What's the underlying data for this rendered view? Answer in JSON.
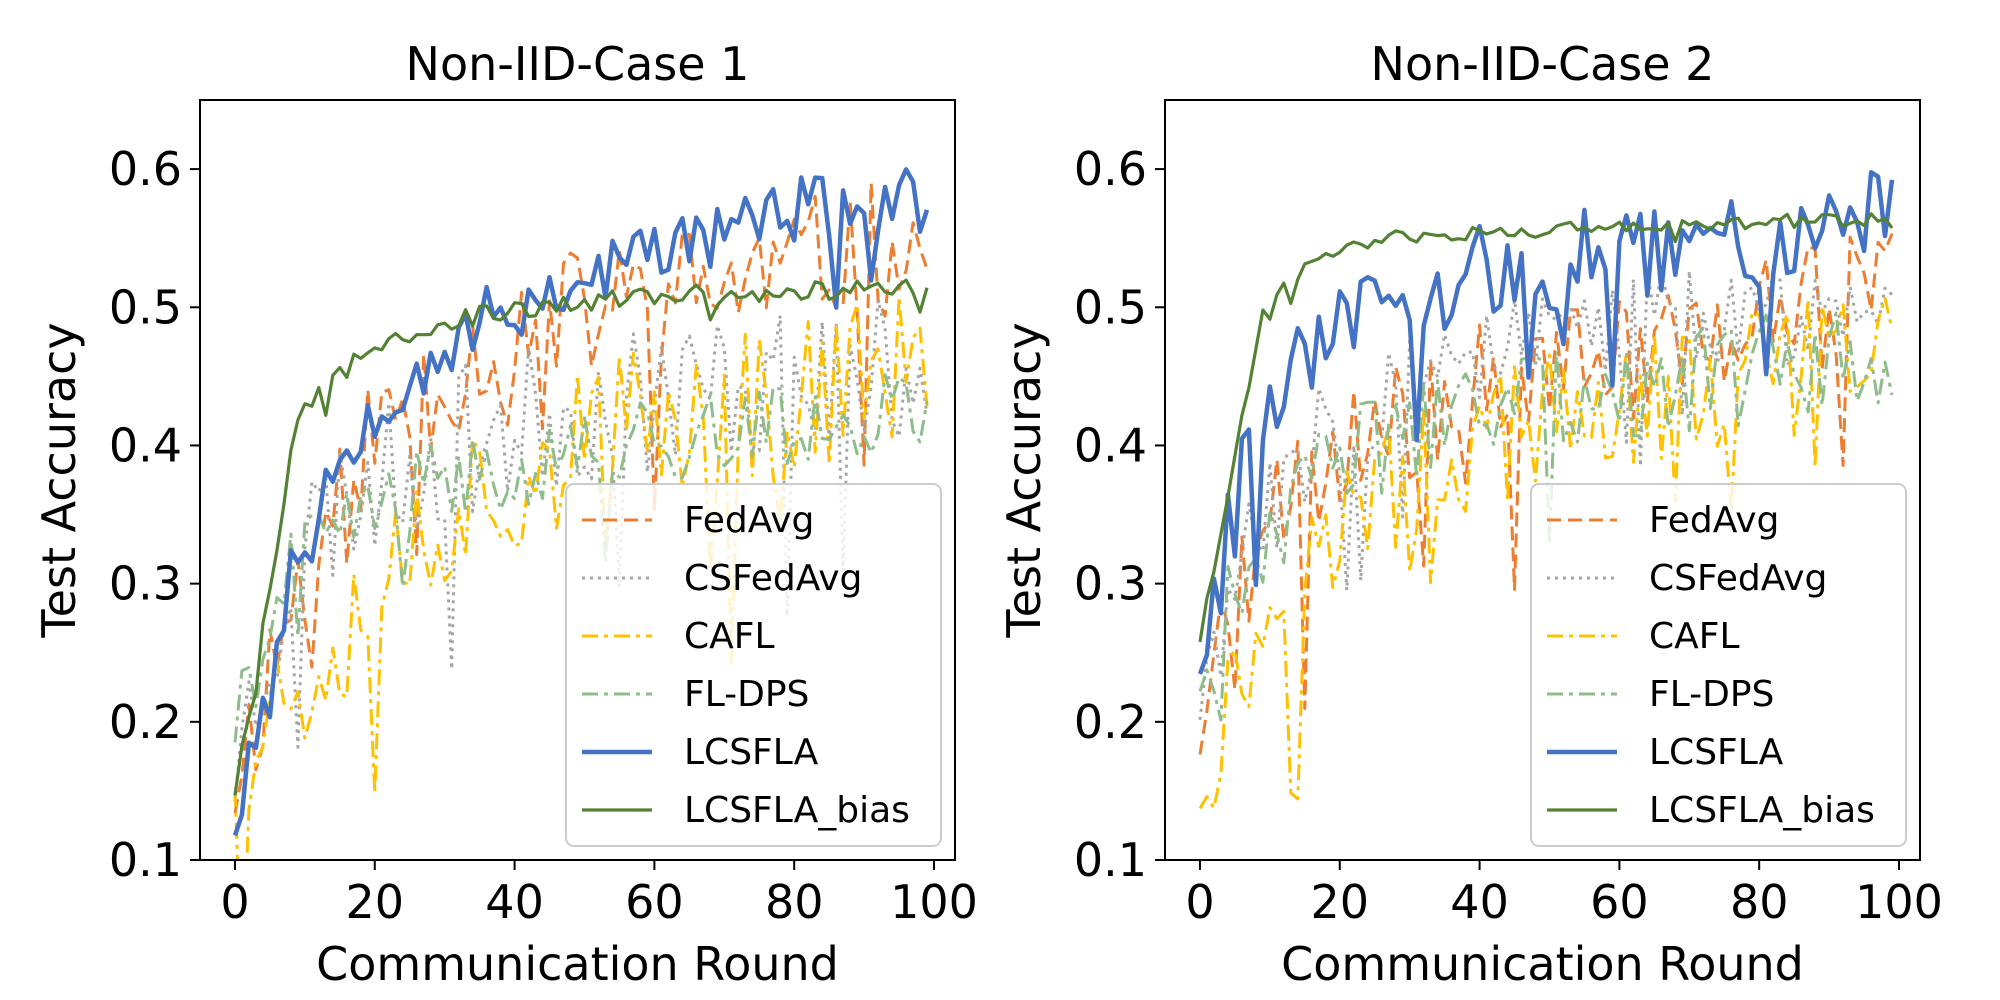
{
  "chart_data": [
    {
      "type": "line",
      "title": "Non-IID-Case 1",
      "xlabel": "Communication Round",
      "ylabel": "Test Accuracy",
      "xlim": [
        -5,
        103
      ],
      "ylim": [
        0.1,
        0.65
      ],
      "xticks": [
        0,
        20,
        40,
        60,
        80,
        100
      ],
      "yticks": [
        0.1,
        0.2,
        0.3,
        0.4,
        0.5,
        0.6
      ],
      "legend_position": "lower-right",
      "series": [
        {
          "name": "FedAvg",
          "color": "#ed7d31",
          "dash": "dashed",
          "base": [
            0.16,
            0.3,
            0.4,
            0.44,
            0.47,
            0.49,
            0.5,
            0.51,
            0.52,
            0.53,
            0.54,
            0.545
          ],
          "noise": 0.05,
          "seed": 11
        },
        {
          "name": "CSFedAvg",
          "color": "#a5a5a5",
          "dash": "dotted",
          "base": [
            0.17,
            0.33,
            0.37,
            0.39,
            0.41,
            0.42,
            0.43,
            0.44,
            0.445,
            0.45,
            0.45,
            0.455
          ],
          "noise": 0.055,
          "seed": 23
        },
        {
          "name": "CAFL",
          "color": "#ffc000",
          "dash": "dashdot",
          "base": [
            0.18,
            0.23,
            0.29,
            0.34,
            0.37,
            0.39,
            0.41,
            0.42,
            0.43,
            0.44,
            0.45,
            0.46
          ],
          "noise": 0.06,
          "seed": 37
        },
        {
          "name": "FL-DPS",
          "color": "#8fbc8b",
          "dash": "dashdot",
          "base": [
            0.2,
            0.32,
            0.35,
            0.37,
            0.38,
            0.39,
            0.4,
            0.405,
            0.41,
            0.415,
            0.42,
            0.43
          ],
          "noise": 0.03,
          "seed": 41
        },
        {
          "name": "LCSFLA",
          "color": "#4472c4",
          "dash": "solid",
          "base": [
            0.13,
            0.33,
            0.42,
            0.46,
            0.49,
            0.51,
            0.53,
            0.545,
            0.56,
            0.57,
            0.575,
            0.575
          ],
          "noise": 0.025,
          "seed": 53
        },
        {
          "name": "LCSFLA_bias",
          "color": "#548235",
          "dash": "solid",
          "base": [
            0.15,
            0.42,
            0.47,
            0.485,
            0.495,
            0.5,
            0.505,
            0.51,
            0.51,
            0.512,
            0.513,
            0.515
          ],
          "noise": 0.007,
          "seed": 67
        }
      ]
    },
    {
      "type": "line",
      "title": "Non-IID-Case 2",
      "xlabel": "Communication Round",
      "ylabel": "Test Accuracy",
      "xlim": [
        -5,
        103
      ],
      "ylim": [
        0.1,
        0.65
      ],
      "xticks": [
        0,
        20,
        40,
        60,
        80,
        100
      ],
      "yticks": [
        0.1,
        0.2,
        0.3,
        0.4,
        0.5,
        0.6
      ],
      "legend_position": "lower-right",
      "series": [
        {
          "name": "FedAvg",
          "color": "#ed7d31",
          "dash": "dashed",
          "base": [
            0.2,
            0.33,
            0.38,
            0.41,
            0.43,
            0.45,
            0.46,
            0.47,
            0.48,
            0.49,
            0.5,
            0.53
          ],
          "noise": 0.05,
          "seed": 71
        },
        {
          "name": "CSFedAvg",
          "color": "#a5a5a5",
          "dash": "dotted",
          "base": [
            0.22,
            0.35,
            0.41,
            0.44,
            0.46,
            0.47,
            0.48,
            0.49,
            0.49,
            0.495,
            0.5,
            0.5
          ],
          "noise": 0.04,
          "seed": 83
        },
        {
          "name": "CAFL",
          "color": "#ffc000",
          "dash": "dashdot",
          "base": [
            0.16,
            0.27,
            0.33,
            0.37,
            0.39,
            0.41,
            0.42,
            0.43,
            0.44,
            0.45,
            0.46,
            0.47
          ],
          "noise": 0.05,
          "seed": 97
        },
        {
          "name": "FL-DPS",
          "color": "#8fbc8b",
          "dash": "dashdot",
          "base": [
            0.24,
            0.33,
            0.38,
            0.4,
            0.42,
            0.43,
            0.44,
            0.445,
            0.45,
            0.455,
            0.46,
            0.47
          ],
          "noise": 0.04,
          "seed": 103
        },
        {
          "name": "LCSFLA",
          "color": "#4472c4",
          "dash": "solid",
          "base": [
            0.25,
            0.43,
            0.47,
            0.5,
            0.52,
            0.53,
            0.535,
            0.54,
            0.545,
            0.55,
            0.56,
            0.57
          ],
          "noise": 0.035,
          "seed": 113
        },
        {
          "name": "LCSFLA_bias",
          "color": "#548235",
          "dash": "solid",
          "base": [
            0.26,
            0.5,
            0.54,
            0.55,
            0.553,
            0.555,
            0.557,
            0.558,
            0.56,
            0.562,
            0.563,
            0.565
          ],
          "noise": 0.005,
          "seed": 127
        }
      ]
    }
  ]
}
